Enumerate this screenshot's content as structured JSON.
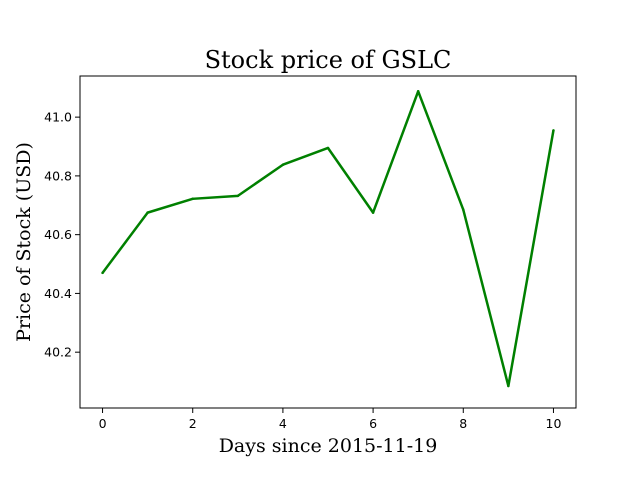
{
  "chart_data": {
    "type": "line",
    "title": "Stock price of GSLC",
    "xlabel": "Days since 2015-11-19",
    "ylabel": "Price of Stock (USD)",
    "xlim": [
      -0.5,
      10.5
    ],
    "ylim": [
      40.01,
      41.14
    ],
    "x_ticks": [
      0,
      2,
      4,
      6,
      8,
      10
    ],
    "y_ticks": [
      40.2,
      40.4,
      40.6,
      40.8,
      41.0
    ],
    "y_tick_labels": [
      "40.2",
      "40.4",
      "40.6",
      "40.8",
      "41.0"
    ],
    "grid": false,
    "series": [
      {
        "color": "#008000",
        "x": [
          0,
          1,
          2,
          3,
          4,
          5,
          6,
          7,
          8,
          9,
          10
        ],
        "y": [
          40.47,
          40.675,
          40.722,
          40.732,
          40.838,
          40.895,
          40.675,
          41.088,
          40.685,
          40.085,
          40.955
        ]
      }
    ]
  }
}
